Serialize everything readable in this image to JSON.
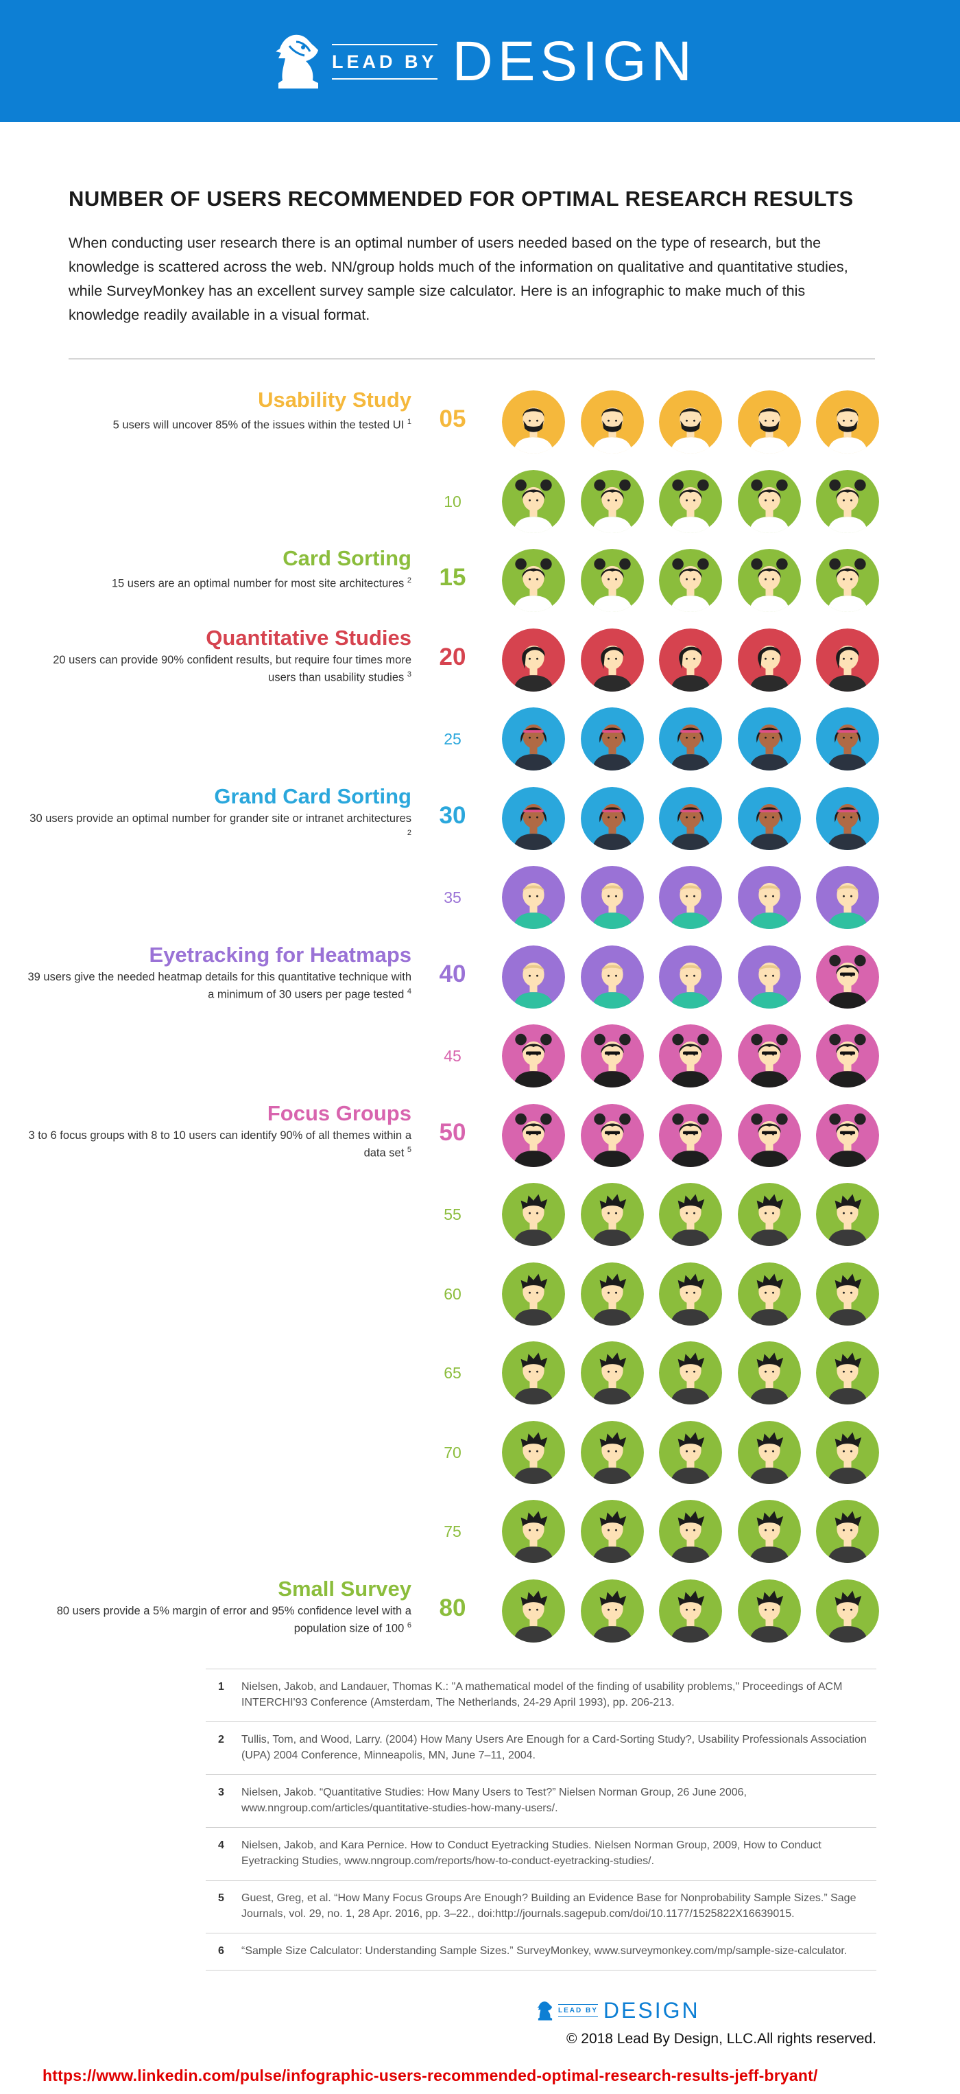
{
  "header": {
    "logo_small": "LEAD BY",
    "logo_large": "DESIGN"
  },
  "title": "NUMBER OF USERS RECOMMENDED FOR OPTIMAL RESEARCH RESULTS",
  "intro": "When conducting user research there is an optimal number of users needed based on the type of research, but the knowledge is scattered across the web. NN/group holds much of the information on qualitative and quantitative studies, while SurveyMonkey has an excellent survey sample size calculator. Here is an infographic to make much of this knowledge readily available in a visual format.",
  "colors": {
    "yellow": "#f5b83c",
    "green": "#8bbd3c",
    "red": "#d6434f",
    "blue": "#2aa7dc",
    "purple": "#9a72d6",
    "pink": "#d864ae",
    "brand_blue": "#0d7fd4",
    "url_red": "#e00000"
  },
  "rows": [
    {
      "number": "05",
      "major": true,
      "title": "Usability Study",
      "desc": "5 users will uncover 85% of the issues within the tested UI",
      "ref": "1",
      "color": "#f5b83c",
      "avatars": [
        "bearded-man",
        "bearded-man",
        "bearded-man",
        "bearded-man",
        "bearded-man"
      ]
    },
    {
      "number": "10",
      "major": false,
      "title": "",
      "desc": "",
      "ref": "",
      "color": "#8bbd3c",
      "avatars": [
        "bun-woman",
        "bun-woman",
        "bun-woman",
        "bun-woman",
        "bun-woman"
      ]
    },
    {
      "number": "15",
      "major": true,
      "title": "Card Sorting",
      "desc": "15 users are an optimal number for most site architectures",
      "ref": "2",
      "color": "#8bbd3c",
      "avatars": [
        "bun-woman",
        "bun-woman",
        "bun-woman",
        "bun-woman",
        "bun-woman"
      ]
    },
    {
      "number": "20",
      "major": true,
      "title": "Quantitative Studies",
      "desc": "20 users can provide 90% confident results, but require four times more users than usability studies",
      "ref": "3",
      "color": "#d6434f",
      "avatars": [
        "sidehair-woman",
        "sidehair-woman",
        "sidehair-woman",
        "sidehair-woman",
        "sidehair-woman"
      ]
    },
    {
      "number": "25",
      "major": false,
      "title": "",
      "desc": "",
      "ref": "",
      "color": "#2aa7dc",
      "avatars": [
        "headband-woman",
        "headband-woman",
        "headband-woman",
        "headband-woman",
        "headband-woman"
      ]
    },
    {
      "number": "30",
      "major": true,
      "title": "Grand Card Sorting",
      "desc": "30 users provide an optimal number for grander site or intranet architectures",
      "ref": "2",
      "color": "#2aa7dc",
      "avatars": [
        "headband-woman",
        "headband-woman",
        "headband-woman",
        "headband-woman",
        "headband-woman"
      ]
    },
    {
      "number": "35",
      "major": false,
      "title": "",
      "desc": "",
      "ref": "",
      "color": "#9a72d6",
      "avatars": [
        "bald-man",
        "bald-man",
        "bald-man",
        "bald-man",
        "bald-man"
      ]
    },
    {
      "number": "40",
      "major": true,
      "title": "Eyetracking for Heatmaps",
      "desc": "39 users give the needed heatmap details for this quantitative technique with a minimum of 30 users per page tested",
      "ref": "4",
      "color": "#9a72d6",
      "avatars": [
        "bald-man",
        "bald-man",
        "bald-man",
        "bald-man",
        "bun-woman-dark"
      ]
    },
    {
      "number": "45",
      "major": false,
      "title": "",
      "desc": "",
      "ref": "",
      "color": "#d864ae",
      "avatars": [
        "bun-woman-dark",
        "bun-woman-dark",
        "bun-woman-dark",
        "bun-woman-dark",
        "bun-woman-dark"
      ]
    },
    {
      "number": "50",
      "major": true,
      "title": "Focus Groups",
      "desc": "3 to 6 focus groups with 8 to 10 users can identify 90% of all themes within a data set",
      "ref": "5",
      "color": "#d864ae",
      "avatars": [
        "bun-woman-dark",
        "bun-woman-dark",
        "bun-woman-dark",
        "bun-woman-dark",
        "bun-woman-dark"
      ]
    },
    {
      "number": "55",
      "major": false,
      "title": "",
      "desc": "",
      "ref": "",
      "color": "#8bbd3c",
      "avatars": [
        "spiky-man",
        "spiky-man",
        "spiky-man",
        "spiky-man",
        "spiky-man"
      ]
    },
    {
      "number": "60",
      "major": false,
      "title": "",
      "desc": "",
      "ref": "",
      "color": "#8bbd3c",
      "avatars": [
        "spiky-man",
        "spiky-man",
        "spiky-man",
        "spiky-man",
        "spiky-man"
      ]
    },
    {
      "number": "65",
      "major": false,
      "title": "",
      "desc": "",
      "ref": "",
      "color": "#8bbd3c",
      "avatars": [
        "spiky-man",
        "spiky-man",
        "spiky-man",
        "spiky-man",
        "spiky-man"
      ]
    },
    {
      "number": "70",
      "major": false,
      "title": "",
      "desc": "",
      "ref": "",
      "color": "#8bbd3c",
      "avatars": [
        "spiky-man",
        "spiky-man",
        "spiky-man",
        "spiky-man",
        "spiky-man"
      ]
    },
    {
      "number": "75",
      "major": false,
      "title": "",
      "desc": "",
      "ref": "",
      "color": "#8bbd3c",
      "avatars": [
        "spiky-man",
        "spiky-man",
        "spiky-man",
        "spiky-man",
        "spiky-man"
      ]
    },
    {
      "number": "80",
      "major": true,
      "title": "Small Survey",
      "desc": "80 users provide a 5% margin of error and 95% confidence level with a population size of 100",
      "ref": "6",
      "color": "#8bbd3c",
      "avatars": [
        "spiky-man",
        "spiky-man",
        "spiky-man",
        "spiky-man",
        "spiky-man"
      ]
    }
  ],
  "references": [
    {
      "num": "1",
      "text": "Nielsen, Jakob, and Landauer, Thomas K.: \"A mathematical model of the finding of usability problems,\" Proceedings of ACM INTERCHI'93 Conference (Amsterdam, The Netherlands, 24-29 April 1993), pp. 206-213."
    },
    {
      "num": "2",
      "text": "Tullis, Tom, and Wood, Larry. (2004) How Many Users Are Enough for a Card-Sorting Study?, Usability Professionals Association (UPA) 2004 Conference, Minneapolis, MN, June 7–11, 2004."
    },
    {
      "num": "3",
      "text": "Nielsen, Jakob. “Quantitative Studies: How Many Users to Test?” Nielsen Norman Group, 26 June 2006, www.nngroup.com/articles/quantitative-studies-how-many-users/."
    },
    {
      "num": "4",
      "text": "Nielsen, Jakob, and Kara Pernice. How to Conduct Eyetracking Studies. Nielsen Norman Group, 2009, How to Conduct Eyetracking Studies, www.nngroup.com/reports/how-to-conduct-eyetracking-studies/."
    },
    {
      "num": "5",
      "text": "Guest, Greg, et al. “How Many Focus Groups Are Enough? Building an Evidence Base for Nonprobability Sample Sizes.” Sage Journals, vol. 29, no. 1, 28 Apr. 2016, pp. 3–22., doi:http://journals.sagepub.com/doi/10.1177/1525822X16639015."
    },
    {
      "num": "6",
      "text": "“Sample Size Calculator: Understanding Sample Sizes.” SurveyMonkey, www.surveymonkey.com/mp/sample-size-calculator."
    }
  ],
  "footer": {
    "logo_small": "LEAD BY",
    "logo_large": "DESIGN",
    "copyright": "© 2018 Lead By Design, LLC.All rights reserved.",
    "source_url": "https://www.linkedin.com/pulse/infographic-users-recommended-optimal-research-results-jeff-bryant/"
  }
}
